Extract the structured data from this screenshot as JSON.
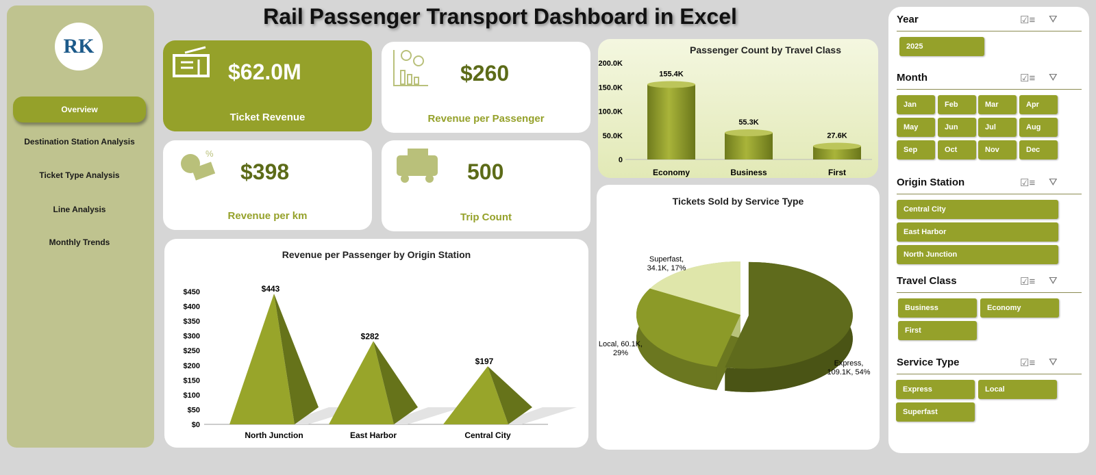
{
  "title": "Rail Passenger Transport Dashboard in Excel",
  "logo_text": "RK",
  "nav": [
    "Overview",
    "Destination Station Analysis",
    "Ticket Type Analysis",
    "Line Analysis",
    "Monthly Trends"
  ],
  "kpis": [
    {
      "value": "$62.0M",
      "label": "Ticket Revenue",
      "icon": "ticket-icon"
    },
    {
      "value": "$260",
      "label": "Revenue per Passenger",
      "icon": "revenue-chart-icon"
    },
    {
      "value": "$398",
      "label": "Revenue per km",
      "icon": "money-bag-icon"
    },
    {
      "value": "500",
      "label": "Trip Count",
      "icon": "bus-icon"
    }
  ],
  "colors": {
    "accent": "#95a12a",
    "dark": "#5c6b18",
    "light": "#e7edc1",
    "sidebar": "#bfc38f"
  },
  "chart_data": [
    {
      "type": "bar",
      "title": "Passenger Count by Travel Class",
      "categories": [
        "Economy",
        "Business",
        "First"
      ],
      "values": [
        155.4,
        55.3,
        27.6
      ],
      "labels": [
        "155.4K",
        "55.3K",
        "27.6K"
      ],
      "unit": "K",
      "ylim": [
        0,
        200
      ],
      "yticks": [
        "0",
        "50.0K",
        "100.0K",
        "150.0K",
        "200.0K"
      ],
      "shape": "cylinder"
    },
    {
      "type": "bar",
      "title": "Revenue per Passenger by Origin Station",
      "categories": [
        "North Junction",
        "East Harbor",
        "Central City"
      ],
      "values": [
        443,
        282,
        197
      ],
      "labels": [
        "$443",
        "$282",
        "$197"
      ],
      "ylim": [
        0,
        450
      ],
      "yticks": [
        "$0",
        "$50",
        "$100",
        "$150",
        "$200",
        "$250",
        "$300",
        "$350",
        "$400",
        "$450"
      ],
      "shape": "pyramid"
    },
    {
      "type": "pie",
      "title": "Tickets Sold by Service Type",
      "categories": [
        "Express",
        "Local",
        "Superfast"
      ],
      "values": [
        109.1,
        60.1,
        34.1
      ],
      "percent": [
        54,
        29,
        17
      ],
      "labels": [
        "Express,\n109.1K, 54%",
        "Local, 60.1K,\n29%",
        "Superfast,\n34.1K, 17%"
      ]
    }
  ],
  "slicers": {
    "year": {
      "title": "Year",
      "items": [
        "2025"
      ]
    },
    "month": {
      "title": "Month",
      "items": [
        "Jan",
        "Feb",
        "Mar",
        "Apr",
        "May",
        "Jun",
        "Jul",
        "Aug",
        "Sep",
        "Oct",
        "Nov",
        "Dec"
      ]
    },
    "origin": {
      "title": "Origin Station",
      "items": [
        "Central City",
        "East Harbor",
        "North Junction"
      ]
    },
    "travel": {
      "title": "Travel Class",
      "items": [
        "Business",
        "Economy",
        "First"
      ]
    },
    "service": {
      "title": "Service Type",
      "items": [
        "Express",
        "Local",
        "Superfast"
      ]
    }
  }
}
